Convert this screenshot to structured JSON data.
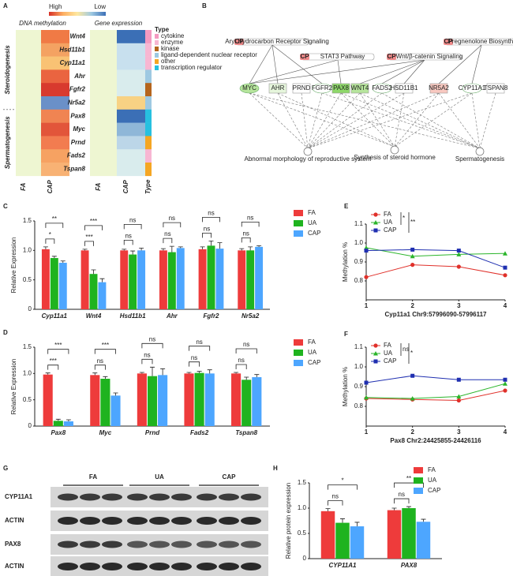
{
  "panel_labels": [
    "A",
    "B",
    "C",
    "D",
    "E",
    "F",
    "G",
    "H"
  ],
  "heatmap": {
    "scale_high": "High",
    "scale_low": "Low",
    "scale_colors": [
      "#d73027",
      "#fdae61",
      "#fee8a0",
      "#9ec9e2",
      "#3b6fb6"
    ],
    "sections": [
      "DNA methylation",
      "Gene expression"
    ],
    "columns": [
      "FA",
      "CAP",
      "FA",
      "CAP",
      "Type"
    ],
    "groups": [
      {
        "name": "Steroidogenesis",
        "genes": [
          {
            "name": "Wnt4",
            "methylation": [
              "#eef6d2",
              "#f07a45"
            ],
            "expression": [
              "#eef6d2",
              "#3b6fb6"
            ],
            "type": "#f49ac1"
          },
          {
            "name": "Hsd11b1",
            "methylation": [
              "#eef6d2",
              "#f4a262"
            ],
            "expression": [
              "#eef6d2",
              "#c8e0ee"
            ],
            "type": "#f7b6d2"
          },
          {
            "name": "Cyp11a1",
            "methylation": [
              "#eef6d2",
              "#f9c274"
            ],
            "expression": [
              "#eef6d2",
              "#c8e0ee"
            ],
            "type": "#f7b6d2"
          },
          {
            "name": "Ahr",
            "methylation": [
              "#eef6d2",
              "#ea6440"
            ],
            "expression": [
              "#eef6d2",
              "#d9eced"
            ],
            "type": "#9ec9e2"
          },
          {
            "name": "Fgfr2",
            "methylation": [
              "#eef6d2",
              "#d83a2e"
            ],
            "expression": [
              "#eef6d2",
              "#d9eced"
            ],
            "type": "#b5651d"
          },
          {
            "name": "Nr5a2",
            "methylation": [
              "#eef6d2",
              "#6a90c8"
            ],
            "expression": [
              "#eef6d2",
              "#f8d284"
            ],
            "type": "#9ec9e2"
          }
        ]
      },
      {
        "name": "Spermatogenesis",
        "genes": [
          {
            "name": "Pax8",
            "methylation": [
              "#eef6d2",
              "#f08452"
            ],
            "expression": [
              "#eef6d2",
              "#3b6fb6"
            ],
            "type": "#27c0e0"
          },
          {
            "name": "Myc",
            "methylation": [
              "#eef6d2",
              "#e2553a"
            ],
            "expression": [
              "#eef6d2",
              "#8fb7d8"
            ],
            "type": "#27c0e0"
          },
          {
            "name": "Prnd",
            "methylation": [
              "#eef6d2",
              "#f27c50"
            ],
            "expression": [
              "#eef6d2",
              "#bcd6e8"
            ],
            "type": "#f5a623"
          },
          {
            "name": "Fads2",
            "methylation": [
              "#eef6d2",
              "#f6a262"
            ],
            "expression": [
              "#eef6d2",
              "#d9eced"
            ],
            "type": "#f7b6d2"
          },
          {
            "name": "Tspan8",
            "methylation": [
              "#eef6d2",
              "#f8b274"
            ],
            "expression": [
              "#eef6d2",
              "#d9eced"
            ],
            "type": "#f5a623"
          }
        ]
      }
    ],
    "type_title": "Type",
    "types": [
      {
        "name": "cytokine",
        "color": "#f49ac1"
      },
      {
        "name": "enzyme",
        "color": "#f7b6d2"
      },
      {
        "name": "kinase",
        "color": "#b5651d"
      },
      {
        "name": "ligand-dependent nuclear receptor",
        "color": "#9ec9e2"
      },
      {
        "name": "other",
        "color": "#f5a623"
      },
      {
        "name": "transcription regulator",
        "color": "#27c0e0"
      }
    ]
  },
  "network": {
    "pathway_tag": "CP",
    "pathways": [
      "Aryl Hydrocarbon Receptor Signaling",
      "STAT3 Pathway",
      "Wnt/β-catenin Signaling",
      "Pregnenolone Biosynthesis"
    ],
    "genes": [
      {
        "label": "MYC",
        "color": "#b6e59c"
      },
      {
        "label": "AHR",
        "color": "#e6f6dc"
      },
      {
        "label": "PRND",
        "color": "#ffffff"
      },
      {
        "label": "FGFR2",
        "color": "#ffffff"
      },
      {
        "label": "PAX8",
        "color": "#8ed86a"
      },
      {
        "label": "WNT4",
        "color": "#b6e59c"
      },
      {
        "label": "FADS2",
        "color": "#ffffff"
      },
      {
        "label": "HSD11B1",
        "color": "#ffffff"
      },
      {
        "label": "NR5A2",
        "color": "#f8c8c0"
      },
      {
        "label": "CYP11A1",
        "color": "#ffffff"
      },
      {
        "label": "TSPAN8",
        "color": "#ffffff"
      }
    ],
    "outcomes": [
      "Abnormal morphology of reproductive system",
      "Synthesis of steroid hormone",
      "Spermatogenesis"
    ]
  },
  "blot": {
    "groups": [
      "FA",
      "UA",
      "CAP"
    ],
    "rows": [
      "CYP11A1",
      "ACTIN",
      "PAX8",
      "ACTIN"
    ]
  },
  "chart_data": [
    {
      "type": "bar",
      "y_label": "Relative Expression",
      "categories": [
        "Cyp11a1",
        "Wnt4",
        "Hsd11b1",
        "Ahr",
        "Fgfr2",
        "Nr5a2"
      ],
      "series": [
        {
          "name": "FA",
          "color": "#ee3b3b",
          "values": [
            1.02,
            1.0,
            1.0,
            1.0,
            1.02,
            1.0
          ],
          "errors": [
            0.04,
            0.02,
            0.02,
            0.03,
            0.04,
            0.03
          ]
        },
        {
          "name": "UA",
          "color": "#1fb31f",
          "values": [
            0.87,
            0.6,
            0.93,
            0.97,
            1.08,
            1.0
          ],
          "errors": [
            0.03,
            0.07,
            0.06,
            0.1,
            0.08,
            0.06
          ]
        },
        {
          "name": "CAP",
          "color": "#4da6ff",
          "values": [
            0.79,
            0.46,
            1.0,
            1.04,
            1.03,
            1.06
          ],
          "errors": [
            0.03,
            0.06,
            0.04,
            0.02,
            0.1,
            0.02
          ]
        }
      ],
      "ylim": [
        0,
        1.5
      ],
      "yticks": [
        0,
        0.5,
        {
          "value": 1,
          "label": "1.0"
        },
        1.5
      ],
      "significance": [
        [
          "*",
          "**"
        ],
        [
          "***",
          "***"
        ],
        [
          "ns",
          "ns"
        ],
        [
          "ns",
          "ns"
        ],
        [
          "ns",
          "ns"
        ],
        [
          "ns",
          "ns"
        ]
      ]
    },
    {
      "type": "bar",
      "y_label": "Relative Expression",
      "categories": [
        "Pax8",
        "Myc",
        "Prnd",
        "Fads2",
        "Tspan8"
      ],
      "series": [
        {
          "name": "FA",
          "color": "#ee3b3b",
          "values": [
            0.98,
            0.97,
            1.0,
            1.0,
            1.0
          ],
          "errors": [
            0.03,
            0.04,
            0.02,
            0.02,
            0.02
          ]
        },
        {
          "name": "UA",
          "color": "#1fb31f",
          "values": [
            0.1,
            0.9,
            0.95,
            1.01,
            0.88
          ],
          "errors": [
            0.03,
            0.04,
            0.17,
            0.03,
            0.05
          ]
        },
        {
          "name": "CAP",
          "color": "#4da6ff",
          "values": [
            0.09,
            0.58,
            0.97,
            1.0,
            0.93
          ],
          "errors": [
            0.03,
            0.05,
            0.12,
            0.07,
            0.05
          ]
        }
      ],
      "ylim": [
        0,
        1.5
      ],
      "yticks": [
        0,
        0.5,
        {
          "value": 1,
          "label": "1.0"
        },
        1.5
      ],
      "significance": [
        [
          "***",
          "***"
        ],
        [
          "ns",
          "***"
        ],
        [
          "ns",
          "ns"
        ],
        [
          "ns",
          "ns"
        ],
        [
          "ns",
          "ns"
        ]
      ]
    },
    {
      "type": "line",
      "y_label": "Methylation %",
      "x_label": "Cyp11a1 Chr9:57996090-57996117",
      "x": [
        1,
        2,
        3,
        4
      ],
      "xlim": [
        1,
        4
      ],
      "xticks": [
        1,
        2,
        3,
        4
      ],
      "series": [
        {
          "name": "FA",
          "color": "#e0302a",
          "marker": "circle",
          "values": [
            0.82,
            0.885,
            0.875,
            0.83
          ]
        },
        {
          "name": "UA",
          "color": "#2bb52b",
          "marker": "triangle",
          "values": [
            0.975,
            0.93,
            0.94,
            0.945
          ]
        },
        {
          "name": "CAP",
          "color": "#1f2fb0",
          "marker": "square",
          "values": [
            0.96,
            0.965,
            0.96,
            0.87
          ]
        }
      ],
      "ylim": [
        0.7,
        1.1
      ],
      "yticks": [
        0.8,
        0.9,
        {
          "value": 1,
          "label": "1.0"
        },
        1.1
      ],
      "significance": [
        "*",
        "**"
      ]
    },
    {
      "type": "line",
      "y_label": "Methylation %",
      "x_label": "Pax8 Chr2:24425855-24426116",
      "x": [
        1,
        2,
        3,
        4
      ],
      "xlim": [
        1,
        4
      ],
      "xticks": [
        1,
        2,
        3,
        4
      ],
      "series": [
        {
          "name": "FA",
          "color": "#e0302a",
          "marker": "circle",
          "values": [
            0.84,
            0.835,
            0.83,
            0.88
          ]
        },
        {
          "name": "UA",
          "color": "#2bb52b",
          "marker": "triangle",
          "values": [
            0.845,
            0.84,
            0.85,
            0.915
          ]
        },
        {
          "name": "CAP",
          "color": "#1f2fb0",
          "marker": "square",
          "values": [
            0.92,
            0.955,
            0.935,
            0.935
          ]
        }
      ],
      "ylim": [
        0.7,
        1.1
      ],
      "yticks": [
        0.8,
        0.9,
        {
          "value": 1,
          "label": "1.0"
        },
        1.1
      ],
      "significance": [
        "ns",
        "*"
      ]
    },
    {
      "type": "bar",
      "y_label": "Relative protein expression",
      "categories": [
        "CYP11A1",
        "PAX8"
      ],
      "series": [
        {
          "name": "FA",
          "color": "#ee3b3b",
          "values": [
            0.94,
            0.96
          ],
          "errors": [
            0.05,
            0.04
          ]
        },
        {
          "name": "UA",
          "color": "#1fb31f",
          "values": [
            0.71,
            1.0
          ],
          "errors": [
            0.08,
            0.03
          ]
        },
        {
          "name": "CAP",
          "color": "#4da6ff",
          "values": [
            0.64,
            0.73
          ],
          "errors": [
            0.08,
            0.05
          ]
        }
      ],
      "ylim": [
        0,
        1.5
      ],
      "yticks": [
        0,
        0.5,
        {
          "value": 1,
          "label": "1.0"
        },
        1.5
      ],
      "significance": [
        [
          "ns",
          "*"
        ],
        [
          "ns",
          "**"
        ]
      ]
    }
  ]
}
